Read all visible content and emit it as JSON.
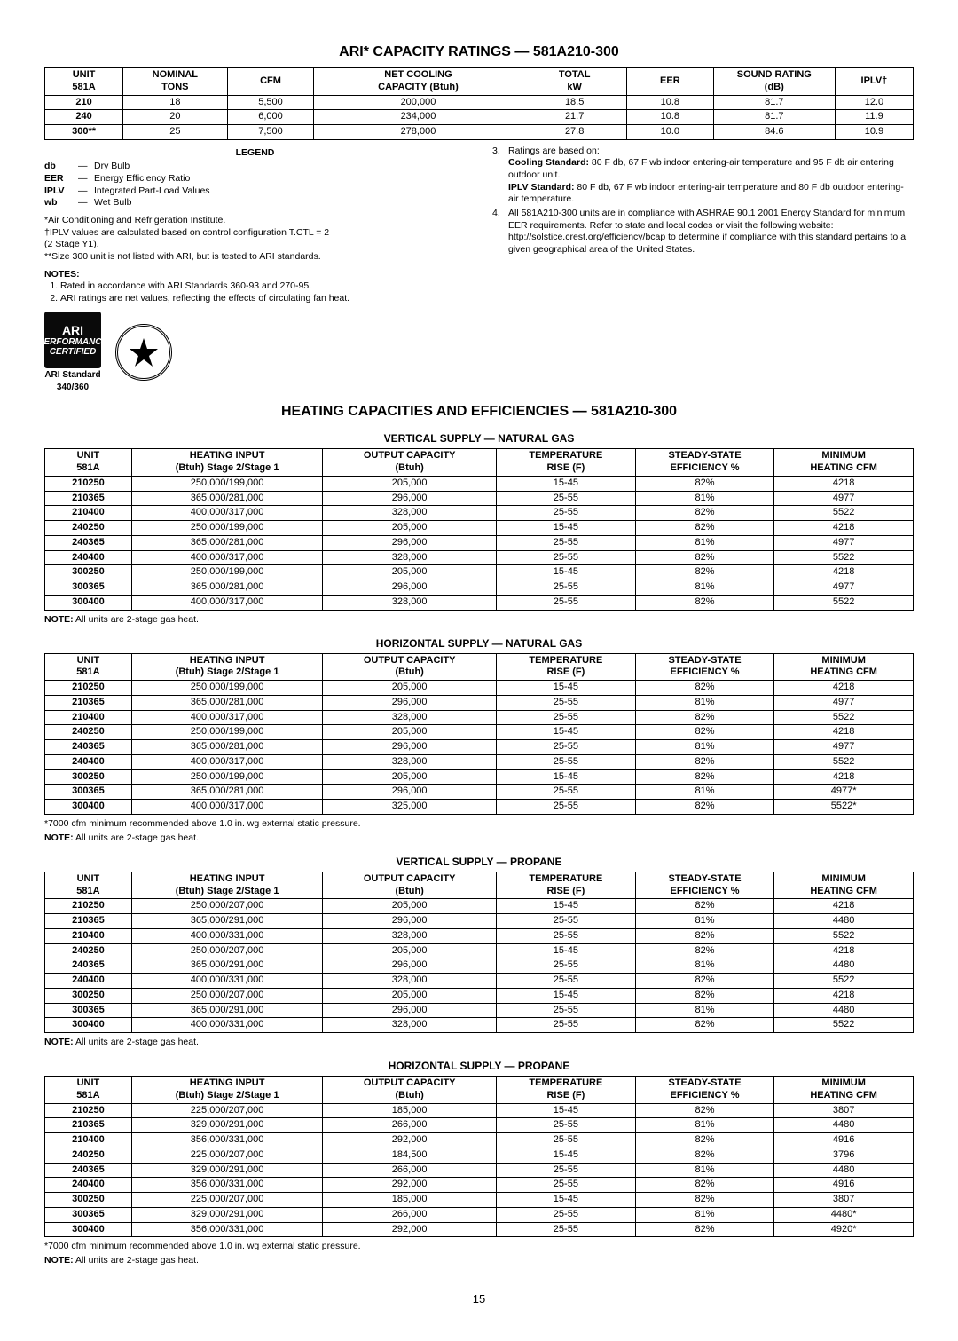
{
  "title1": "ARI* CAPACITY RATINGS — 581A210-300",
  "ari_table": {
    "headers": [
      [
        "UNIT",
        "581A"
      ],
      [
        "NOMINAL",
        "TONS"
      ],
      [
        "CFM",
        ""
      ],
      [
        "NET COOLING",
        "CAPACITY (Btuh)"
      ],
      [
        "TOTAL",
        "kW"
      ],
      [
        "EER",
        ""
      ],
      [
        "SOUND RATING",
        "(dB)"
      ],
      [
        "IPLV†",
        ""
      ]
    ],
    "rows": [
      [
        "210",
        "18",
        "5,500",
        "200,000",
        "18.5",
        "10.8",
        "81.7",
        "12.0"
      ],
      [
        "240",
        "20",
        "6,000",
        "234,000",
        "21.7",
        "10.8",
        "81.7",
        "11.9"
      ],
      [
        "300**",
        "25",
        "7,500",
        "278,000",
        "27.8",
        "10.0",
        "84.6",
        "10.9"
      ]
    ]
  },
  "legend": {
    "title": "LEGEND",
    "items": [
      {
        "abbr": "db",
        "def": "Dry Bulb"
      },
      {
        "abbr": "EER",
        "def": "Energy Efficiency Ratio"
      },
      {
        "abbr": "IPLV",
        "def": "Integrated Part-Load Values"
      },
      {
        "abbr": "wb",
        "def": "Wet Bulb"
      }
    ]
  },
  "foot_left": [
    "*Air Conditioning and Refrigeration Institute.",
    "†IPLV values are calculated based on control configuration T.CTL = 2",
    "(2 Stage Y1).",
    "**Size 300 unit is not listed with ARI, but is tested to ARI standards."
  ],
  "notes_title": "NOTES:",
  "notes_left": [
    "Rated in accordance with ARI Standards 360-93 and 270-95.",
    "ARI ratings are net values, reflecting the effects of circulating fan heat."
  ],
  "notes_right": [
    {
      "num": "3.",
      "text": "Ratings are based on:",
      "sub": [
        {
          "b": "Cooling Standard:",
          "t": " 80 F db, 67 F wb indoor entering-air temperature and 95 F db air entering outdoor unit."
        },
        {
          "b": "IPLV Standard:",
          "t": " 80 F db, 67 F wb indoor entering-air temperature and 80 F db outdoor entering-air temperature."
        }
      ]
    },
    {
      "num": "4.",
      "text": "All 581A210-300 units are in compliance with ASHRAE 90.1 2001 Energy Standard for minimum EER requirements. Refer to state and local codes or visit the following website: http://solstice.crest.org/efficiency/bcap to determine if compliance with this standard pertains to a given geographical area of the United States."
    }
  ],
  "ari_badge": {
    "l1": "ARI",
    "l2": "PERFORMANCE",
    "l3": "CERTIFIED",
    "cap1": "ARI Standard",
    "cap2": "340/360"
  },
  "title2": "HEATING CAPACITIES AND EFFICIENCIES — 581A210-300",
  "heat_headers": [
    [
      "UNIT",
      "581A"
    ],
    [
      "HEATING INPUT",
      "(Btuh) Stage 2/Stage 1"
    ],
    [
      "OUTPUT CAPACITY",
      "(Btuh)"
    ],
    [
      "TEMPERATURE",
      "RISE (F)"
    ],
    [
      "STEADY-STATE",
      "EFFICIENCY %"
    ],
    [
      "MINIMUM",
      "HEATING CFM"
    ]
  ],
  "sections": [
    {
      "title": "VERTICAL SUPPLY — NATURAL GAS",
      "groups": [
        [
          [
            "210250",
            "250,000/199,000",
            "205,000",
            "15-45",
            "82%",
            "4218"
          ],
          [
            "210365",
            "365,000/281,000",
            "296,000",
            "25-55",
            "81%",
            "4977"
          ],
          [
            "210400",
            "400,000/317,000",
            "328,000",
            "25-55",
            "82%",
            "5522"
          ]
        ],
        [
          [
            "240250",
            "250,000/199,000",
            "205,000",
            "15-45",
            "82%",
            "4218"
          ],
          [
            "240365",
            "365,000/281,000",
            "296,000",
            "25-55",
            "81%",
            "4977"
          ],
          [
            "240400",
            "400,000/317,000",
            "328,000",
            "25-55",
            "82%",
            "5522"
          ]
        ],
        [
          [
            "300250",
            "250,000/199,000",
            "205,000",
            "15-45",
            "82%",
            "4218"
          ],
          [
            "300365",
            "365,000/281,000",
            "296,000",
            "25-55",
            "81%",
            "4977"
          ],
          [
            "300400",
            "400,000/317,000",
            "328,000",
            "25-55",
            "82%",
            "5522"
          ]
        ]
      ],
      "footnotes": [
        "NOTE: All units are 2-stage gas heat."
      ]
    },
    {
      "title": "HORIZONTAL SUPPLY — NATURAL GAS",
      "groups": [
        [
          [
            "210250",
            "250,000/199,000",
            "205,000",
            "15-45",
            "82%",
            "4218"
          ],
          [
            "210365",
            "365,000/281,000",
            "296,000",
            "25-55",
            "81%",
            "4977"
          ],
          [
            "210400",
            "400,000/317,000",
            "328,000",
            "25-55",
            "82%",
            "5522"
          ]
        ],
        [
          [
            "240250",
            "250,000/199,000",
            "205,000",
            "15-45",
            "82%",
            "4218"
          ],
          [
            "240365",
            "365,000/281,000",
            "296,000",
            "25-55",
            "81%",
            "4977"
          ],
          [
            "240400",
            "400,000/317,000",
            "328,000",
            "25-55",
            "82%",
            "5522"
          ]
        ],
        [
          [
            "300250",
            "250,000/199,000",
            "205,000",
            "15-45",
            "82%",
            "4218"
          ],
          [
            "300365",
            "365,000/281,000",
            "296,000",
            "25-55",
            "81%",
            "4977*"
          ],
          [
            "300400",
            "400,000/317,000",
            "325,000",
            "25-55",
            "82%",
            "5522*"
          ]
        ]
      ],
      "footnotes": [
        "*7000 cfm minimum recommended above 1.0 in. wg external static pressure.",
        "NOTE: All units are 2-stage gas heat."
      ]
    },
    {
      "title": "VERTICAL SUPPLY — PROPANE",
      "groups": [
        [
          [
            "210250",
            "250,000/207,000",
            "205,000",
            "15-45",
            "82%",
            "4218"
          ],
          [
            "210365",
            "365,000/291,000",
            "296,000",
            "25-55",
            "81%",
            "4480"
          ],
          [
            "210400",
            "400,000/331,000",
            "328,000",
            "25-55",
            "82%",
            "5522"
          ]
        ],
        [
          [
            "240250",
            "250,000/207,000",
            "205,000",
            "15-45",
            "82%",
            "4218"
          ],
          [
            "240365",
            "365,000/291,000",
            "296,000",
            "25-55",
            "81%",
            "4480"
          ],
          [
            "240400",
            "400,000/331,000",
            "328,000",
            "25-55",
            "82%",
            "5522"
          ]
        ],
        [
          [
            "300250",
            "250,000/207,000",
            "205,000",
            "15-45",
            "82%",
            "4218"
          ],
          [
            "300365",
            "365,000/291,000",
            "296,000",
            "25-55",
            "81%",
            "4480"
          ],
          [
            "300400",
            "400,000/331,000",
            "328,000",
            "25-55",
            "82%",
            "5522"
          ]
        ]
      ],
      "footnotes": [
        "NOTE: All units are 2-stage gas heat."
      ]
    },
    {
      "title": "HORIZONTAL SUPPLY — PROPANE",
      "groups": [
        [
          [
            "210250",
            "225,000/207,000",
            "185,000",
            "15-45",
            "82%",
            "3807"
          ],
          [
            "210365",
            "329,000/291,000",
            "266,000",
            "25-55",
            "81%",
            "4480"
          ],
          [
            "210400",
            "356,000/331,000",
            "292,000",
            "25-55",
            "82%",
            "4916"
          ]
        ],
        [
          [
            "240250",
            "225,000/207,000",
            "184,500",
            "15-45",
            "82%",
            "3796"
          ],
          [
            "240365",
            "329,000/291,000",
            "266,000",
            "25-55",
            "81%",
            "4480"
          ],
          [
            "240400",
            "356,000/331,000",
            "292,000",
            "25-55",
            "82%",
            "4916"
          ]
        ],
        [
          [
            "300250",
            "225,000/207,000",
            "185,000",
            "15-45",
            "82%",
            "3807"
          ],
          [
            "300365",
            "329,000/291,000",
            "266,000",
            "25-55",
            "81%",
            "4480*"
          ],
          [
            "300400",
            "356,000/331,000",
            "292,000",
            "25-55",
            "82%",
            "4920*"
          ]
        ]
      ],
      "footnotes": [
        "*7000 cfm minimum recommended above 1.0 in. wg external static pressure.",
        "NOTE: All units are 2-stage gas heat."
      ]
    }
  ],
  "page_num": "15",
  "col_widths_ari": [
    "9%",
    "12%",
    "10%",
    "24%",
    "12%",
    "10%",
    "14%",
    "9%"
  ],
  "col_widths_heat": [
    "10%",
    "22%",
    "20%",
    "16%",
    "16%",
    "16%"
  ]
}
